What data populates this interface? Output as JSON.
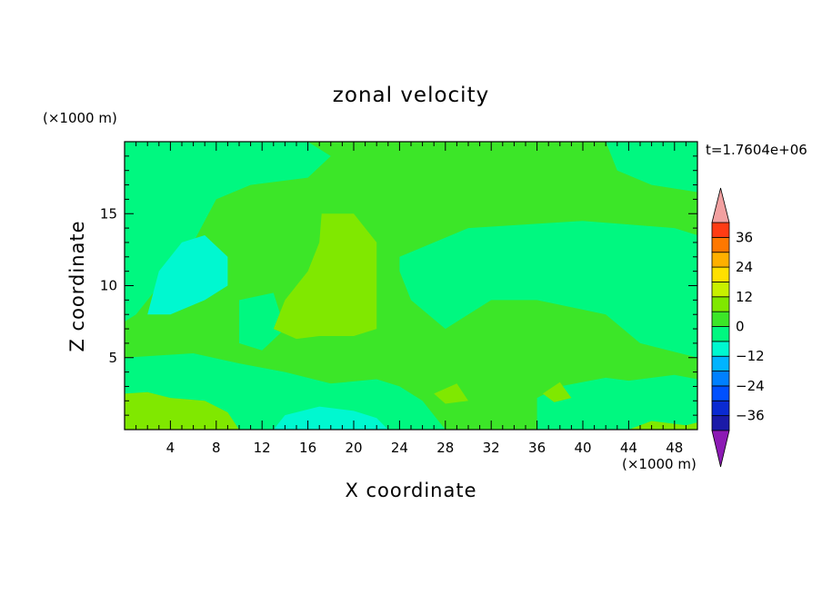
{
  "chart_data": {
    "type": "heatmap",
    "title": "zonal velocity",
    "xlabel": "X coordinate",
    "ylabel": "Z coordinate",
    "x_unit": "(×1000 m)",
    "y_unit": "(×1000 m)",
    "time_label": "t=1.7604e+06",
    "xlim": [
      0,
      50
    ],
    "ylim": [
      0,
      20
    ],
    "x_ticks": [
      4,
      8,
      12,
      16,
      20,
      24,
      28,
      32,
      36,
      40,
      44,
      48
    ],
    "y_ticks": [
      5,
      10,
      15
    ],
    "colorbar": {
      "levels": [
        -42,
        -36,
        -30,
        -24,
        -18,
        -12,
        -6,
        0,
        6,
        12,
        18,
        24,
        30,
        36,
        42
      ],
      "colors": [
        "#3a0a8c",
        "#1a1aa8",
        "#0a2ad2",
        "#0050ff",
        "#0080ff",
        "#00b4ff",
        "#00f8d0",
        "#00f880",
        "#3ce628",
        "#80e800",
        "#c8f000",
        "#ffe000",
        "#ffb000",
        "#ff7800",
        "#ff3c14",
        "#ff0000"
      ],
      "under_color": "#8c1ab4",
      "over_color": "#f2a0a0",
      "tick_labels": [
        {
          "value": 36,
          "label": "36"
        },
        {
          "value": 24,
          "label": "24"
        },
        {
          "value": 12,
          "label": "12"
        },
        {
          "value": 0,
          "label": "0"
        },
        {
          "value": -12,
          "label": "−12"
        },
        {
          "value": -24,
          "label": "−24"
        },
        {
          "value": -36,
          "label": "−36"
        }
      ]
    },
    "background_value": 3,
    "regions": [
      {
        "value": -3,
        "points": [
          [
            0,
            20
          ],
          [
            16,
            20
          ],
          [
            18,
            19
          ],
          [
            16,
            17.5
          ],
          [
            11,
            17
          ],
          [
            8,
            16
          ],
          [
            6,
            13
          ],
          [
            3,
            10
          ],
          [
            1,
            8
          ],
          [
            0,
            7.5
          ]
        ]
      },
      {
        "value": -3,
        "points": [
          [
            24,
            12
          ],
          [
            30,
            14
          ],
          [
            40,
            14.5
          ],
          [
            48,
            14
          ],
          [
            50,
            13.5
          ],
          [
            50,
            5
          ],
          [
            45,
            6
          ],
          [
            42,
            8
          ],
          [
            36,
            9
          ],
          [
            32,
            9
          ],
          [
            28,
            7
          ],
          [
            25,
            9
          ],
          [
            24,
            11
          ]
        ]
      },
      {
        "value": -3,
        "points": [
          [
            42,
            20
          ],
          [
            50,
            20
          ],
          [
            50,
            16.5
          ],
          [
            46,
            17
          ],
          [
            43,
            18
          ]
        ]
      },
      {
        "value": -3,
        "points": [
          [
            10,
            9
          ],
          [
            13,
            9.5
          ],
          [
            14,
            7
          ],
          [
            12,
            5.5
          ],
          [
            10,
            6
          ]
        ]
      },
      {
        "value": -3,
        "points": [
          [
            0,
            5
          ],
          [
            6,
            5.3
          ],
          [
            10,
            4.6
          ],
          [
            14,
            4
          ],
          [
            18,
            3.2
          ],
          [
            22,
            3.5
          ],
          [
            24,
            3
          ],
          [
            26,
            2
          ],
          [
            28,
            0
          ],
          [
            0,
            0
          ]
        ]
      },
      {
        "value": -3,
        "points": [
          [
            36,
            2.2
          ],
          [
            38,
            3
          ],
          [
            42,
            3.6
          ],
          [
            44,
            3.4
          ],
          [
            48,
            3.8
          ],
          [
            50,
            3.5
          ],
          [
            50,
            0
          ],
          [
            36,
            0
          ]
        ]
      },
      {
        "value": -9,
        "points": [
          [
            2,
            8
          ],
          [
            3,
            11
          ],
          [
            5,
            13
          ],
          [
            7,
            13.5
          ],
          [
            9,
            12
          ],
          [
            9,
            10
          ],
          [
            7,
            9
          ],
          [
            4,
            8
          ]
        ]
      },
      {
        "value": -9,
        "points": [
          [
            13,
            0
          ],
          [
            14,
            1
          ],
          [
            17,
            1.6
          ],
          [
            20,
            1.3
          ],
          [
            22,
            0.8
          ],
          [
            23,
            0
          ]
        ]
      },
      {
        "value": 9,
        "points": [
          [
            13,
            7
          ],
          [
            14,
            9
          ],
          [
            16,
            11
          ],
          [
            17,
            13
          ],
          [
            17.2,
            15
          ],
          [
            20,
            15
          ],
          [
            22,
            13
          ],
          [
            22,
            10
          ],
          [
            22,
            7
          ],
          [
            20,
            6.5
          ],
          [
            17,
            6.5
          ],
          [
            15,
            6.3
          ]
        ]
      },
      {
        "value": 9,
        "points": [
          [
            0,
            2.5
          ],
          [
            2,
            2.6
          ],
          [
            4,
            2.2
          ],
          [
            7,
            2
          ],
          [
            9,
            1.2
          ],
          [
            10,
            0
          ],
          [
            0,
            0
          ]
        ]
      },
      {
        "value": 9,
        "points": [
          [
            27,
            2.5
          ],
          [
            29,
            3.2
          ],
          [
            30,
            2
          ],
          [
            28,
            1.8
          ]
        ]
      },
      {
        "value": 9,
        "points": [
          [
            36.5,
            2.5
          ],
          [
            38,
            3.3
          ],
          [
            39,
            2.2
          ],
          [
            37.5,
            1.9
          ]
        ]
      },
      {
        "value": 9,
        "points": [
          [
            44,
            0
          ],
          [
            46,
            0.6
          ],
          [
            49,
            0.3
          ],
          [
            50,
            0.5
          ],
          [
            50,
            0
          ]
        ]
      }
    ]
  }
}
